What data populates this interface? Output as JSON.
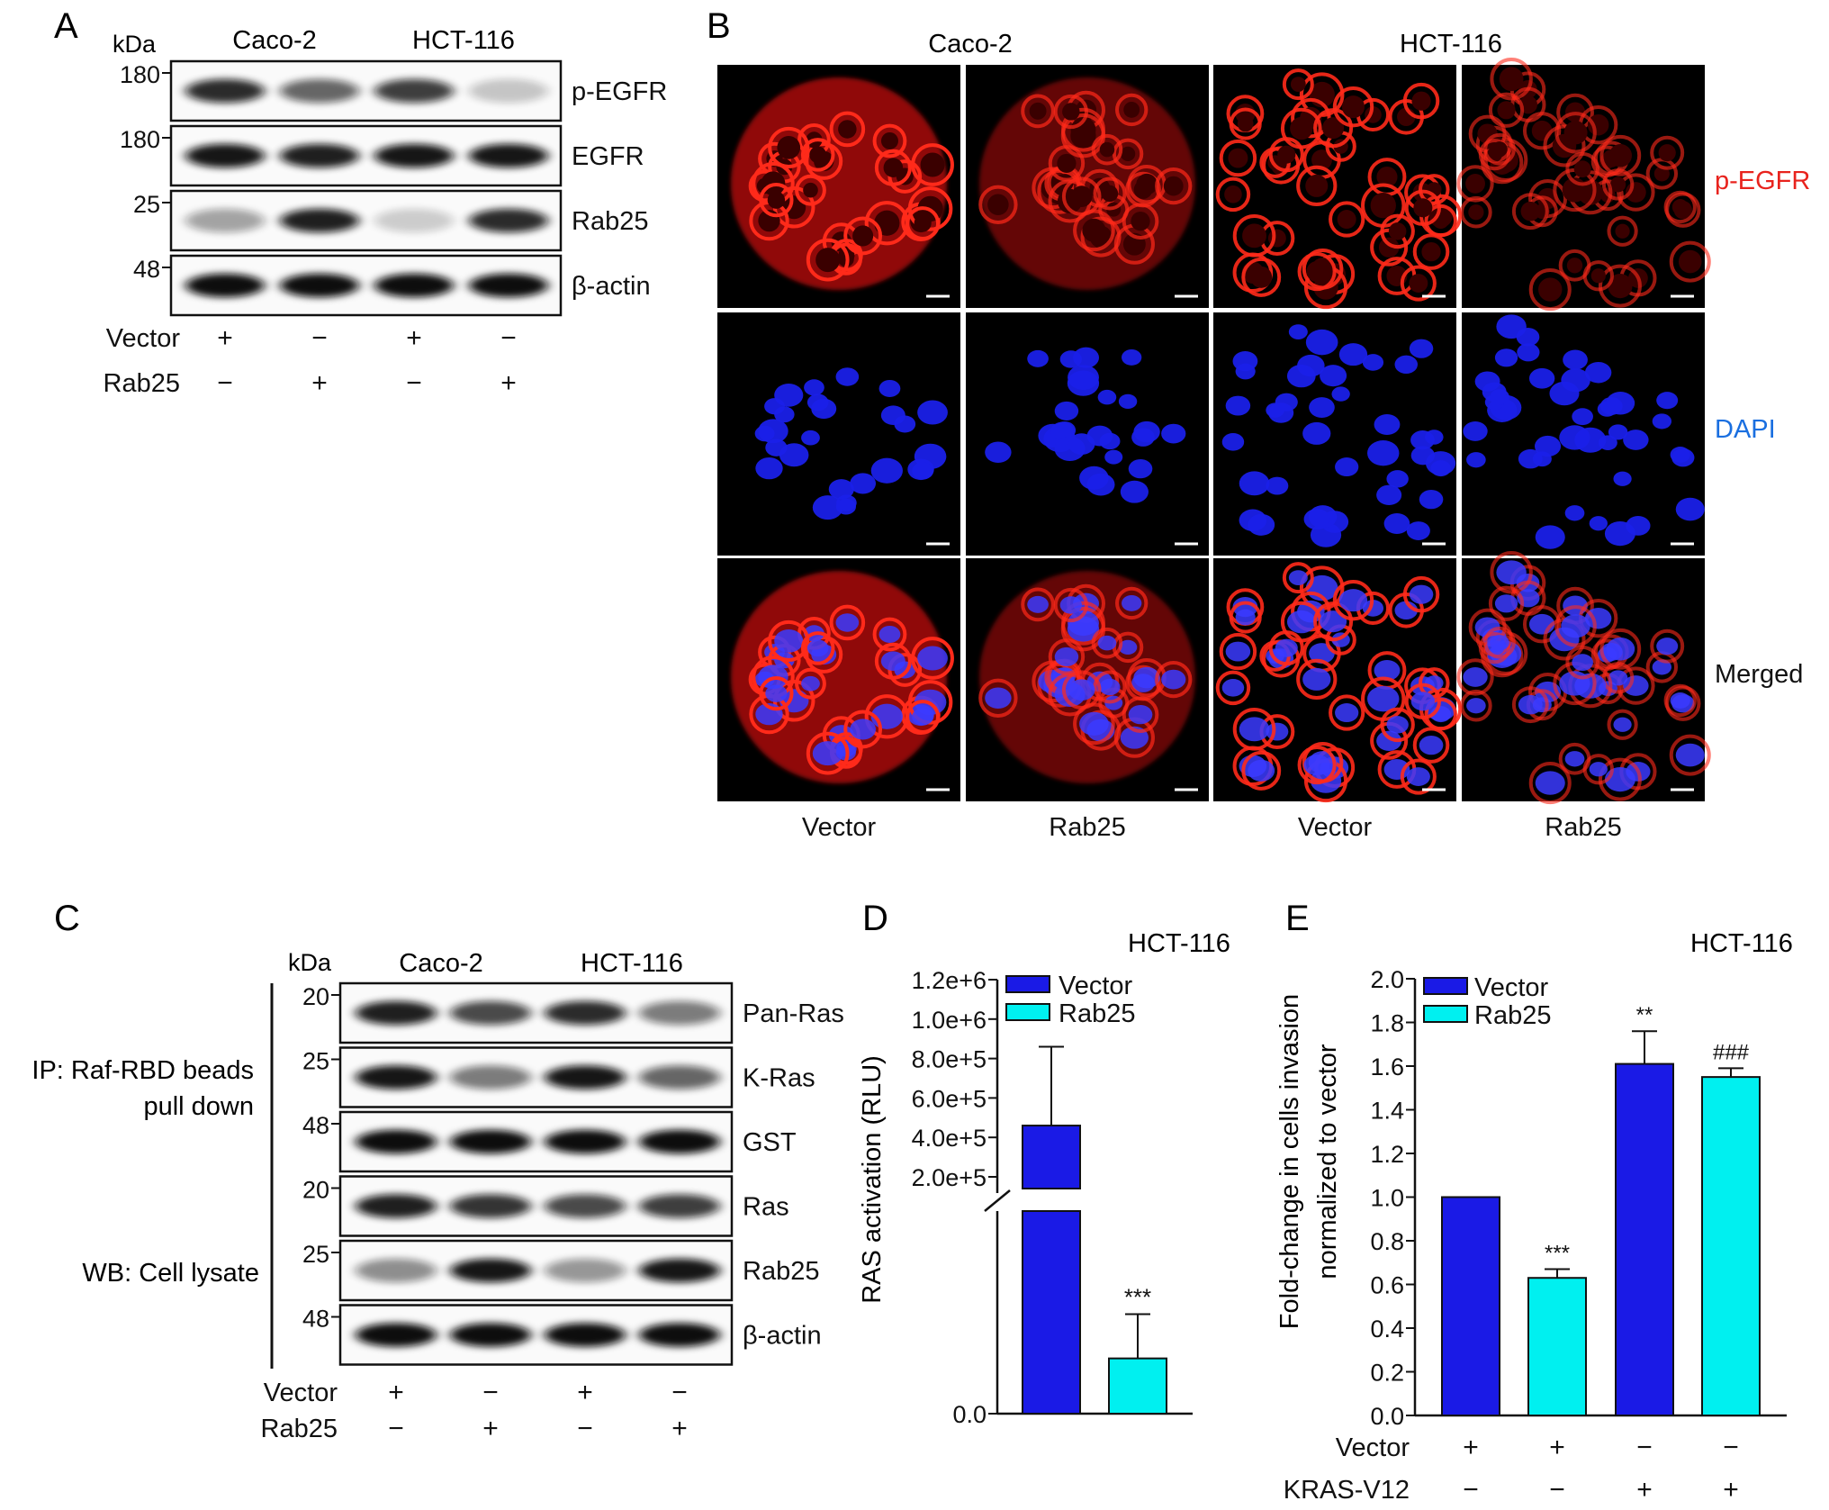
{
  "panelA": {
    "letter": "A",
    "kda": "kDa",
    "cell_lines": [
      "Caco-2",
      "HCT-116"
    ],
    "blots": [
      {
        "marker": "180",
        "label": "p-EGFR",
        "intensity": [
          0.85,
          0.55,
          0.75,
          0.08
        ]
      },
      {
        "marker": "180",
        "label": "EGFR",
        "intensity": [
          0.95,
          0.9,
          0.95,
          0.95
        ]
      },
      {
        "marker": "25",
        "label": "Rab25",
        "intensity": [
          0.25,
          0.9,
          0.05,
          0.85
        ]
      },
      {
        "marker": "48",
        "label": "β-actin",
        "intensity": [
          1,
          1,
          1,
          1
        ]
      }
    ],
    "rows": [
      {
        "label": "Vector",
        "signs": [
          "+",
          "−",
          "+",
          "−"
        ]
      },
      {
        "label": "Rab25",
        "signs": [
          "−",
          "+",
          "−",
          "+"
        ]
      }
    ]
  },
  "panelB": {
    "letter": "B",
    "cell_lines": [
      "Caco-2",
      "HCT-116"
    ],
    "row_labels": [
      "p-EGFR",
      "DAPI",
      "Merged"
    ],
    "row_label_colors": [
      "#e8231d",
      "#1a6fe0",
      "#111111"
    ],
    "column_labels": [
      "Vector",
      "Rab25",
      "Vector",
      "Rab25"
    ],
    "red_intensity": [
      1.0,
      0.7,
      0.9,
      0.6
    ]
  },
  "panelC": {
    "letter": "C",
    "kda": "kDa",
    "cell_lines": [
      "Caco-2",
      "HCT-116"
    ],
    "group_labels": [
      {
        "lines": [
          "IP: Raf-RBD beads",
          "pull down"
        ]
      },
      {
        "lines": [
          "WB: Cell lysate"
        ]
      }
    ],
    "blots": [
      {
        "marker": "20",
        "label": "Pan-Ras",
        "intensity": [
          0.9,
          0.7,
          0.85,
          0.45
        ]
      },
      {
        "marker": "25",
        "label": "K-Ras",
        "intensity": [
          0.95,
          0.45,
          0.95,
          0.55
        ]
      },
      {
        "marker": "48",
        "label": "GST",
        "intensity": [
          1,
          1,
          1,
          1
        ]
      },
      {
        "marker": "20",
        "label": "Ras",
        "intensity": [
          0.9,
          0.8,
          0.7,
          0.75
        ]
      },
      {
        "marker": "25",
        "label": "Rab25",
        "intensity": [
          0.35,
          0.95,
          0.3,
          0.95
        ]
      },
      {
        "marker": "48",
        "label": "β-actin",
        "intensity": [
          1,
          1,
          1,
          1
        ]
      }
    ],
    "rows": [
      {
        "label": "Vector",
        "signs": [
          "+",
          "−",
          "+",
          "−"
        ]
      },
      {
        "label": "Rab25",
        "signs": [
          "−",
          "+",
          "−",
          "+"
        ]
      }
    ]
  },
  "chart_data": [
    {
      "panel": "D",
      "type": "bar",
      "title": "HCT-116",
      "ylabel": "RAS activation (RLU)",
      "yticks": [
        "1.2e+6",
        "1.0e+6",
        "8.0e+5",
        "6.0e+5",
        "4.0e+5",
        "2.0e+5",
        "0.0"
      ],
      "broken_axis": true,
      "categories": [
        "Vector",
        "Rab25"
      ],
      "values": [
        460000,
        15000
      ],
      "errors": [
        400000,
        12000
      ],
      "colors": [
        "#1a1ae6",
        "#00f0f0"
      ],
      "annotations": [
        "",
        "***"
      ],
      "legend": [
        "Vector",
        "Rab25"
      ],
      "legend_position": "top-left"
    },
    {
      "panel": "E",
      "type": "bar",
      "title": "HCT-116",
      "ylabel": "Fold-change in cells invasion normalized to vector",
      "ylabel_lines": [
        "Fold-change in cells invasion",
        "normalized to vector"
      ],
      "ylim": [
        0,
        2.0
      ],
      "yticks": [
        "0.0",
        "0.2",
        "0.4",
        "0.6",
        "0.8",
        "1.0",
        "1.2",
        "1.4",
        "1.6",
        "1.8",
        "2.0"
      ],
      "categories": [
        "Vector",
        "Rab25",
        "Vector + KRAS-V12",
        "Rab25 + KRAS-V12"
      ],
      "values": [
        1.0,
        0.63,
        1.61,
        1.55
      ],
      "errors": [
        0,
        0.04,
        0.15,
        0.04
      ],
      "colors": [
        "#1a1ae6",
        "#00f0f0",
        "#1a1ae6",
        "#00f0f0"
      ],
      "annotations": [
        "",
        "***",
        "**",
        "###"
      ],
      "legend": [
        "Vector",
        "Rab25"
      ],
      "legend_position": "top-left",
      "rows": [
        {
          "label": "Vector",
          "signs": [
            "+",
            "+",
            "−",
            "−"
          ]
        },
        {
          "label": "KRAS-V12",
          "signs": [
            "−",
            "−",
            "+",
            "+"
          ]
        }
      ]
    }
  ],
  "panel_letters": {
    "D": "D",
    "E": "E"
  }
}
